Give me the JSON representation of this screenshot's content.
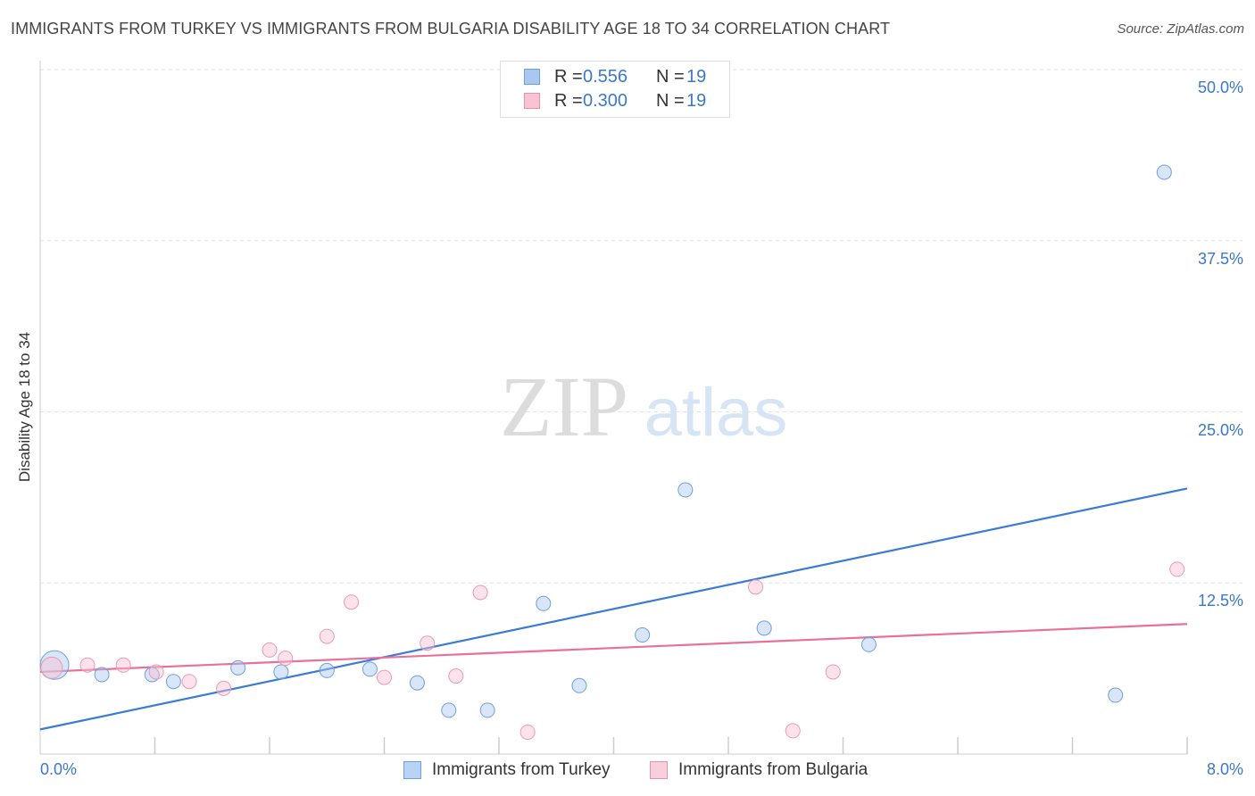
{
  "header": {
    "title": "IMMIGRANTS FROM TURKEY VS IMMIGRANTS FROM BULGARIA DISABILITY AGE 18 TO 34 CORRELATION CHART",
    "source": "Source: ZipAtlas.com"
  },
  "watermark": {
    "zip": "ZIP",
    "atlas": "atlas"
  },
  "legend": {
    "rows": [
      {
        "r_label": "R =",
        "r_value": "0.556",
        "n_label": "N =",
        "n_value": "19",
        "color": "#a8c8f0",
        "border": "#6a9fe0"
      },
      {
        "r_label": "R =",
        "r_value": "0.300",
        "n_label": "N =",
        "n_value": "19",
        "color": "#f8c4d4",
        "border": "#e890ae"
      }
    ]
  },
  "bottom_legend": {
    "turkey": "Immigrants from Turkey",
    "bulgaria": "Immigrants from Bulgaria"
  },
  "chart_data": {
    "type": "scatter",
    "title": "IMMIGRANTS FROM TURKEY VS IMMIGRANTS FROM BULGARIA DISABILITY AGE 18 TO 34 CORRELATION CHART",
    "xlabel": "",
    "ylabel": "Disability Age 18 to 34",
    "xlim": [
      0,
      8
    ],
    "ylim": [
      0,
      50
    ],
    "x_tick_labels": [
      "0.0%",
      "8.0%"
    ],
    "y_tick_labels": [
      "12.5%",
      "25.0%",
      "37.5%",
      "50.0%"
    ],
    "y_ticks": [
      12.5,
      25,
      37.5,
      50
    ],
    "grid": true,
    "legend_position": "top-center",
    "colors": {
      "turkey": "#3a7bd5",
      "bulgaria": "#e8709a"
    },
    "series": [
      {
        "name": "Immigrants from Turkey",
        "points": [
          [
            0.1,
            6.5
          ],
          [
            0.43,
            5.8
          ],
          [
            0.78,
            5.8
          ],
          [
            0.93,
            5.3
          ],
          [
            1.38,
            6.3
          ],
          [
            1.68,
            6.0
          ],
          [
            2.0,
            6.1
          ],
          [
            2.3,
            6.2
          ],
          [
            2.63,
            5.2
          ],
          [
            2.85,
            3.2
          ],
          [
            3.12,
            3.2
          ],
          [
            3.51,
            11.0
          ],
          [
            3.76,
            5.0
          ],
          [
            4.2,
            8.7
          ],
          [
            4.5,
            19.3
          ],
          [
            5.05,
            9.2
          ],
          [
            5.78,
            8.0
          ],
          [
            7.5,
            4.3
          ],
          [
            7.84,
            42.5
          ]
        ],
        "trend": [
          [
            0,
            1.8
          ],
          [
            8,
            19.4
          ]
        ]
      },
      {
        "name": "Immigrants from Bulgaria",
        "points": [
          [
            0.08,
            6.3
          ],
          [
            0.33,
            6.5
          ],
          [
            0.58,
            6.5
          ],
          [
            0.81,
            6.0
          ],
          [
            1.04,
            5.3
          ],
          [
            1.28,
            4.8
          ],
          [
            1.6,
            7.6
          ],
          [
            1.71,
            7.0
          ],
          [
            2.0,
            8.6
          ],
          [
            2.17,
            11.1
          ],
          [
            2.4,
            5.6
          ],
          [
            2.7,
            8.1
          ],
          [
            2.9,
            5.7
          ],
          [
            3.07,
            11.8
          ],
          [
            3.4,
            1.6
          ],
          [
            4.99,
            12.2
          ],
          [
            5.25,
            1.7
          ],
          [
            5.53,
            6.0
          ],
          [
            7.93,
            13.5
          ]
        ],
        "trend": [
          [
            0,
            6.0
          ],
          [
            8,
            9.5
          ]
        ]
      }
    ]
  }
}
